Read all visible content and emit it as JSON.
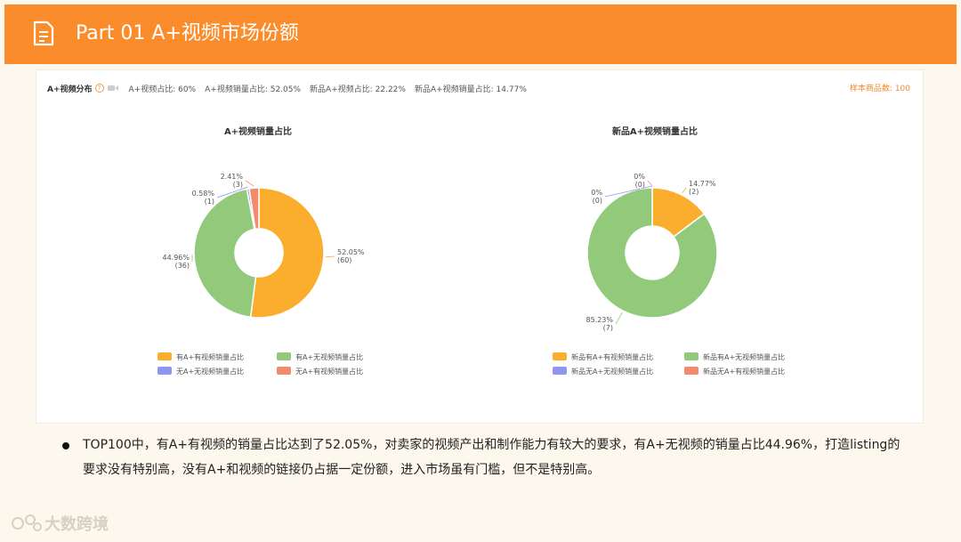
{
  "header": {
    "title": "Part 01  A+视频市场份额",
    "icon": "document-icon",
    "color": "#fb8c2c"
  },
  "stats": {
    "dist_title": "A+视频分布",
    "help_icon": "question-icon",
    "camera_icon": "video-camera-icon",
    "items": [
      "A+视频占比: 60%",
      "A+视频销量占比: 52.05%",
      "新品A+视频占比: 22.22%",
      "新品A+视频销量占比: 14.77%"
    ],
    "sample": "样本商品数: 100"
  },
  "chart_data": [
    {
      "type": "pie",
      "title": "A+视频销量占比",
      "slices": [
        {
          "label": "有A+有视频销量占比",
          "percent": 52.05,
          "count": 60,
          "color": "#fbae2d",
          "value_label": "52.05%",
          "count_label": "(60)"
        },
        {
          "label": "有A+无视频销量占比",
          "percent": 44.96,
          "count": 36,
          "color": "#92c97a",
          "value_label": "44.96%",
          "count_label": "(36)"
        },
        {
          "label": "无A+无视频销量占比",
          "percent": 0.58,
          "count": 1,
          "color": "#8e96f2",
          "value_label": "0.58%",
          "count_label": "(1)"
        },
        {
          "label": "无A+有视频销量占比",
          "percent": 2.41,
          "count": 3,
          "color": "#f28a6b",
          "value_label": "2.41%",
          "count_label": "(3)"
        }
      ],
      "legend_placement": "bottom"
    },
    {
      "type": "pie",
      "title": "新品A+视频销量占比",
      "slices": [
        {
          "label": "新品有A+有视频销量占比",
          "percent": 14.77,
          "count": 2,
          "color": "#fbae2d",
          "value_label": "14.77%",
          "count_label": "(2)"
        },
        {
          "label": "新品有A+无视频销量占比",
          "percent": 85.23,
          "count": 7,
          "color": "#92c97a",
          "value_label": "85.23%",
          "count_label": "(7)"
        },
        {
          "label": "新品无A+无视频销量占比",
          "percent": 0,
          "count": 0,
          "color": "#8e96f2",
          "value_label": "0%",
          "count_label": "(0)"
        },
        {
          "label": "新品无A+有视频销量占比",
          "percent": 0,
          "count": 0,
          "color": "#f28a6b",
          "value_label": "0%",
          "count_label": "(0)"
        }
      ],
      "legend_placement": "bottom"
    }
  ],
  "note": "TOP100中，有A+有视频的销量占比达到了52.05%，对卖家的视频产出和制作能力有较大的要求，有A+无视频的销量占比44.96%，打造listing的要求没有特别高，没有A+和视频的链接仍占据一定份额，进入市场虽有门槛，但不是特别高。",
  "logo": {
    "text": "大数跨境",
    "icon": "logo-icon"
  }
}
